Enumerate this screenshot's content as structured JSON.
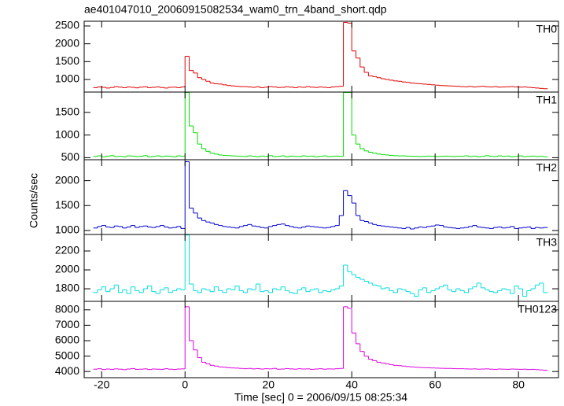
{
  "title": "ae401047010_20060915082534_wam0_trn_4band_short.qdp",
  "x_label": "Time [sec] 0 = 2006/09/15 08:25:34",
  "y_label": "Counts/sec",
  "x_axis": {
    "bins": [
      -22,
      -21,
      -20,
      -19,
      -18,
      -17,
      -16,
      -15,
      -14,
      -13,
      -12,
      -11,
      -10,
      -9,
      -8,
      -7,
      -6,
      -5,
      -4,
      -3,
      -2,
      -1,
      0,
      1,
      2,
      3,
      4,
      5,
      6,
      7,
      8,
      9,
      10,
      11,
      12,
      13,
      14,
      15,
      16,
      17,
      18,
      19,
      20,
      21,
      22,
      23,
      24,
      25,
      26,
      27,
      28,
      29,
      30,
      31,
      32,
      33,
      34,
      35,
      36,
      37,
      38,
      39,
      40,
      41,
      42,
      43,
      44,
      45,
      46,
      47,
      48,
      49,
      50,
      51,
      52,
      53,
      54,
      55,
      56,
      57,
      58,
      59,
      60,
      61,
      62,
      63,
      64,
      65,
      66,
      67,
      68,
      69,
      70,
      71,
      72,
      73,
      74,
      75,
      76,
      77,
      78,
      79,
      80,
      81,
      82,
      83,
      84,
      85,
      86,
      87
    ],
    "xlim": [
      -24.2,
      89.6
    ],
    "xticks": [
      -20,
      0,
      20,
      40,
      60,
      80
    ]
  },
  "chart_data": [
    {
      "type": "step",
      "label": "TH0",
      "color": "#e00000",
      "ylim": [
        647,
        2632
      ],
      "yticks": [
        1000,
        1500,
        2000,
        2500
      ],
      "values": [
        770,
        790,
        780,
        760,
        775,
        800,
        785,
        770,
        790,
        780,
        765,
        785,
        795,
        770,
        780,
        790,
        775,
        760,
        780,
        785,
        770,
        790,
        1650,
        1250,
        1180,
        1050,
        1000,
        950,
        900,
        880,
        870,
        850,
        830,
        820,
        810,
        800,
        800,
        790,
        780,
        795,
        770,
        785,
        800,
        790,
        775,
        780,
        795,
        785,
        770,
        790,
        780,
        800,
        785,
        775,
        790,
        780,
        770,
        790,
        800,
        810,
        2600,
        2580,
        1800,
        1600,
        1350,
        1200,
        1100,
        1080,
        1050,
        1020,
        1000,
        980,
        960,
        950,
        930,
        920,
        900,
        890,
        880,
        870,
        860,
        850,
        840,
        830,
        825,
        820,
        815,
        810,
        800,
        795,
        805,
        790,
        800,
        810,
        795,
        790,
        800,
        785,
        790,
        795,
        800,
        790,
        785,
        790,
        780,
        770,
        760,
        750,
        740
      ]
    },
    {
      "type": "step",
      "label": "TH1",
      "color": "#00dd00",
      "ylim": [
        455,
        1948
      ],
      "yticks": [
        500,
        1000,
        1500
      ],
      "values": [
        530,
        540,
        520,
        535,
        545,
        525,
        530,
        520,
        540,
        535,
        525,
        530,
        545,
        520,
        530,
        540,
        525,
        535,
        530,
        520,
        540,
        530,
        1940,
        1200,
        1050,
        800,
        700,
        640,
        600,
        580,
        560,
        550,
        545,
        540,
        535,
        530,
        525,
        540,
        530,
        520,
        535,
        530,
        545,
        525,
        530,
        540,
        520,
        535,
        530,
        525,
        540,
        530,
        535,
        520,
        530,
        540,
        525,
        530,
        535,
        530,
        1940,
        1940,
        1000,
        800,
        700,
        650,
        620,
        600,
        580,
        570,
        560,
        550,
        545,
        540,
        540,
        535,
        530,
        530,
        525,
        530,
        535,
        530,
        525,
        530,
        535,
        530,
        525,
        530,
        530,
        540,
        525,
        535,
        520,
        530,
        545,
        530,
        525,
        540,
        530,
        535,
        520,
        530,
        540,
        525,
        530,
        535,
        525,
        530,
        520
      ]
    },
    {
      "type": "step",
      "label": "TH2",
      "color": "#0000cc",
      "ylim": [
        920,
        2420
      ],
      "yticks": [
        1000,
        1500,
        2000
      ],
      "values": [
        1050,
        1080,
        1100,
        1070,
        1060,
        1090,
        1080,
        1050,
        1070,
        1100,
        1060,
        1080,
        1090,
        1070,
        1060,
        1080,
        1100,
        1070,
        1050,
        1060,
        1080,
        1040,
        2380,
        1450,
        1350,
        1250,
        1200,
        1170,
        1150,
        1120,
        1100,
        1080,
        1070,
        1060,
        1050,
        1080,
        1100,
        1120,
        1090,
        1080,
        1060,
        1050,
        1080,
        1100,
        1120,
        1130,
        1100,
        1080,
        1060,
        1050,
        1070,
        1090,
        1080,
        1070,
        1060,
        1050,
        1060,
        1080,
        1100,
        1300,
        1800,
        1700,
        1550,
        1300,
        1200,
        1180,
        1150,
        1120,
        1100,
        1090,
        1080,
        1070,
        1060,
        1050,
        1040,
        1060,
        1030,
        1050,
        1070,
        1060,
        1080,
        1090,
        1110,
        1100,
        1070,
        1060,
        1050,
        1040,
        1050,
        1060,
        1080,
        1100,
        1070,
        1060,
        1050,
        1040,
        1060,
        1070,
        1050,
        1060,
        1080,
        1040,
        1050,
        1060,
        1070,
        1040,
        1060,
        1050,
        1060
      ]
    },
    {
      "type": "step",
      "label": "TH3",
      "color": "#00dddd",
      "ylim": [
        1667,
        2375
      ],
      "yticks": [
        1800,
        2000,
        2200
      ],
      "values": [
        1760,
        1790,
        1820,
        1770,
        1800,
        1840,
        1760,
        1790,
        1750,
        1820,
        1780,
        1760,
        1800,
        1830,
        1770,
        1750,
        1790,
        1810,
        1760,
        1780,
        1800,
        1790,
        2370,
        1850,
        1780,
        1760,
        1800,
        1790,
        1770,
        1820,
        1780,
        1760,
        1800,
        1790,
        1830,
        1780,
        1760,
        1800,
        1790,
        1850,
        1770,
        1780,
        1760,
        1800,
        1790,
        1820,
        1780,
        1760,
        1750,
        1790,
        1810,
        1770,
        1790,
        1800,
        1760,
        1780,
        1770,
        1790,
        1800,
        1830,
        2050,
        1980,
        1950,
        1920,
        1900,
        1880,
        1860,
        1840,
        1830,
        1800,
        1810,
        1780,
        1760,
        1800,
        1790,
        1770,
        1750,
        1720,
        1790,
        1810,
        1760,
        1780,
        1800,
        1820,
        1840,
        1790,
        1770,
        1800,
        1780,
        1760,
        1800,
        1820,
        1860,
        1810,
        1790,
        1770,
        1760,
        1780,
        1800,
        1790,
        1750,
        1830,
        1800,
        1720,
        1780,
        1800,
        1840,
        1860,
        1760
      ]
    },
    {
      "type": "step",
      "label": "TH0123",
      "color": "#dd00dd",
      "ylim": [
        3600,
        8550
      ],
      "yticks": [
        4000,
        5000,
        6000,
        7000,
        8000
      ],
      "values": [
        4150,
        4180,
        4130,
        4160,
        4140,
        4170,
        4150,
        4120,
        4160,
        4190,
        4140,
        4150,
        4170,
        4130,
        4160,
        4150,
        4140,
        4180,
        4150,
        4130,
        4160,
        4170,
        8200,
        6000,
        5400,
        4900,
        4600,
        4500,
        4400,
        4350,
        4300,
        4280,
        4250,
        4230,
        4220,
        4200,
        4180,
        4200,
        4170,
        4190,
        4160,
        4180,
        4170,
        4200,
        4150,
        4160,
        4190,
        4170,
        4150,
        4180,
        4160,
        4170,
        4140,
        4160,
        4180,
        4150,
        4170,
        4160,
        4180,
        4200,
        8200,
        8100,
        6500,
        5800,
        5300,
        5000,
        4800,
        4700,
        4600,
        4550,
        4500,
        4450,
        4400,
        4380,
        4350,
        4320,
        4300,
        4280,
        4260,
        4250,
        4240,
        4230,
        4220,
        4210,
        4200,
        4200,
        4190,
        4180,
        4180,
        4170,
        4160,
        4170,
        4150,
        4160,
        4170,
        4150,
        4140,
        4160,
        4150,
        4140,
        4160,
        4150,
        4140,
        4150,
        4130,
        4140,
        4120,
        4100,
        4080
      ]
    }
  ]
}
